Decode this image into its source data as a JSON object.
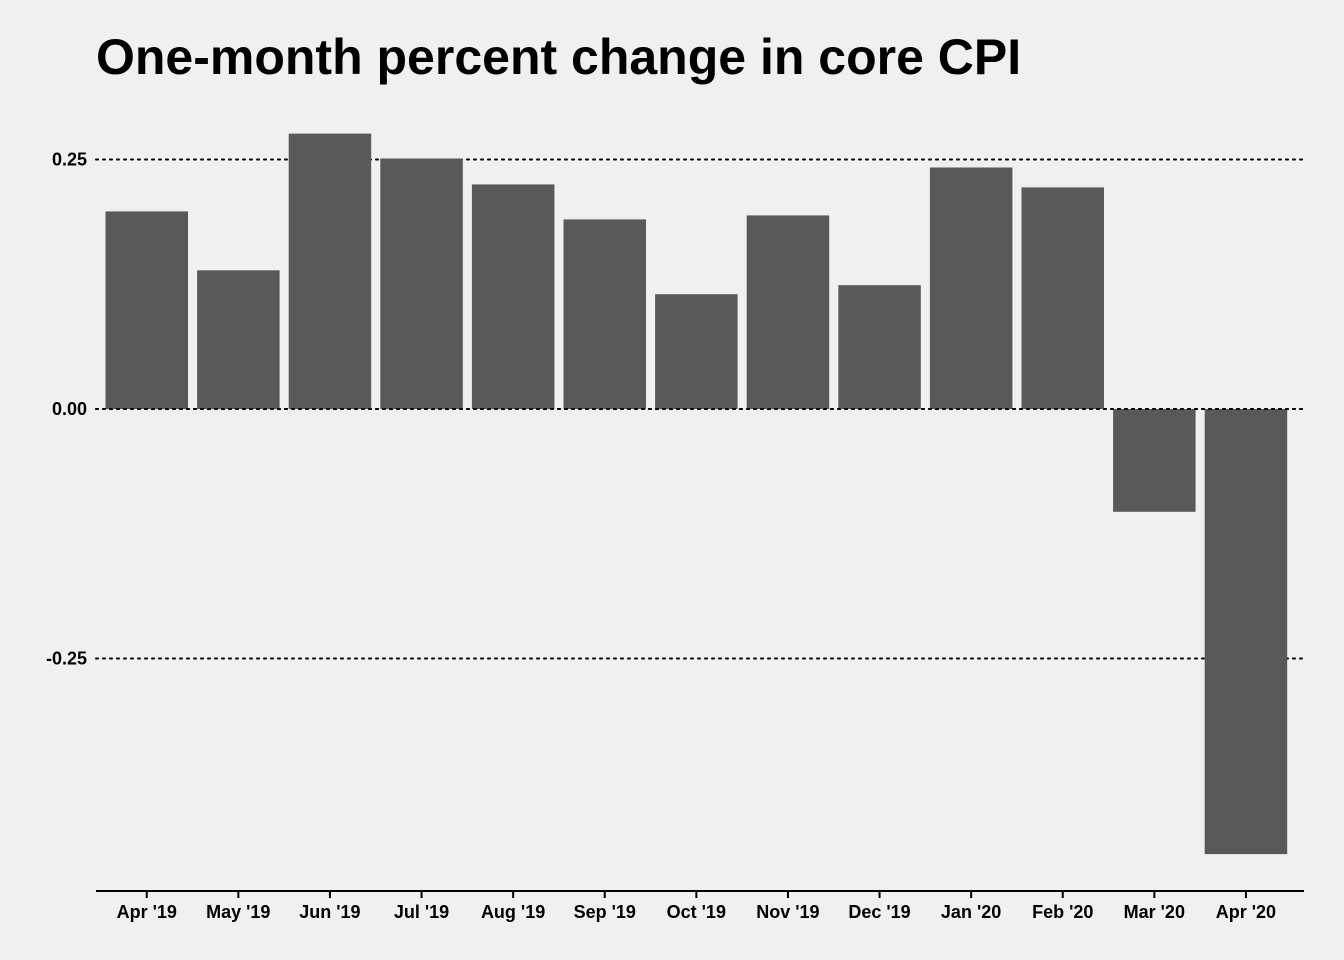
{
  "chart_data": {
    "type": "bar",
    "title": "One-month percent change in core CPI",
    "xlabel": "",
    "ylabel": "",
    "categories": [
      "Apr '19",
      "May '19",
      "Jun '19",
      "Jul '19",
      "Aug '19",
      "Sep '19",
      "Oct '19",
      "Nov '19",
      "Dec '19",
      "Jan '20",
      "Feb '20",
      "Mar '20",
      "Apr '20"
    ],
    "values": [
      0.198,
      0.139,
      0.276,
      0.251,
      0.225,
      0.19,
      0.115,
      0.194,
      0.124,
      0.242,
      0.222,
      -0.103,
      -0.446
    ],
    "ylim": [
      -0.48,
      0.3
    ],
    "yticks": [
      -0.25,
      0.0,
      0.25
    ],
    "ytick_labels": [
      "-0.25",
      "0.00",
      "0.25"
    ],
    "grid": "horizontal-dotted",
    "colors": {
      "background": "#f0f0f0",
      "bar": "#595959",
      "text": "#000000"
    }
  }
}
